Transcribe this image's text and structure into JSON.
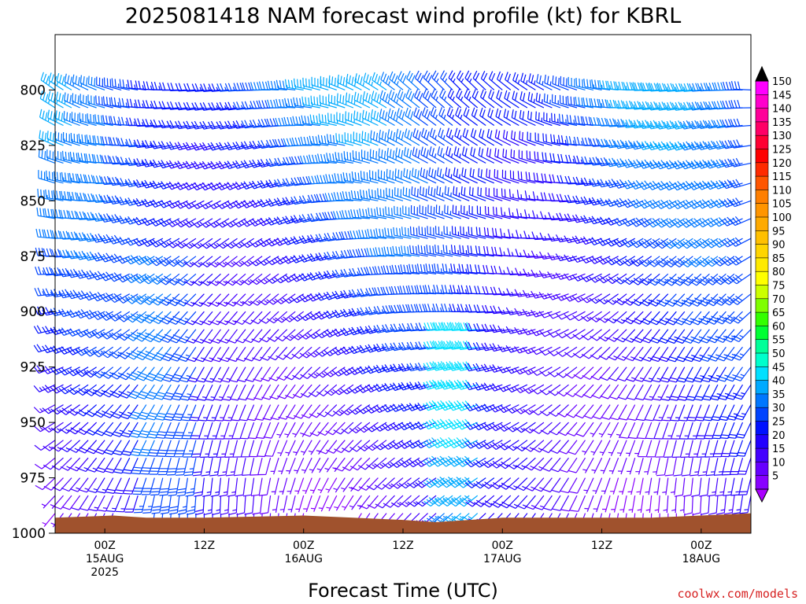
{
  "chart_data": {
    "type": "wind-barb time-height",
    "title": "2025081418 NAM forecast wind profile (kt) for KBRL",
    "xlabel": "Forecast Time (UTC)",
    "credit": "coolwx.com/models",
    "y_ticks": [
      "800",
      "825",
      "850",
      "875",
      "900",
      "925",
      "950",
      "975",
      "1000"
    ],
    "y_range_hPa": [
      775,
      1000
    ],
    "x_ticks": [
      {
        "hour": 0,
        "l1": "00Z",
        "l2": "15AUG",
        "l3": "2025"
      },
      {
        "hour": 12,
        "l1": "12Z",
        "l2": "",
        "l3": ""
      },
      {
        "hour": 24,
        "l1": "00Z",
        "l2": "16AUG",
        "l3": ""
      },
      {
        "hour": 36,
        "l1": "12Z",
        "l2": "",
        "l3": ""
      },
      {
        "hour": 48,
        "l1": "00Z",
        "l2": "17AUG",
        "l3": ""
      },
      {
        "hour": 60,
        "l1": "12Z",
        "l2": "",
        "l3": ""
      },
      {
        "hour": 72,
        "l1": "00Z",
        "l2": "18AUG",
        "l3": ""
      }
    ],
    "x_range_hours": [
      -6,
      78
    ],
    "colorbar": {
      "labels": [
        "150",
        "145",
        "140",
        "135",
        "130",
        "125",
        "120",
        "115",
        "110",
        "105",
        "100",
        "95",
        "90",
        "85",
        "80",
        "75",
        "70",
        "65",
        "60",
        "55",
        "50",
        "45",
        "40",
        "35",
        "30",
        "25",
        "20",
        "15",
        "10",
        "5"
      ],
      "colors": [
        "#ff00ff",
        "#ff00cc",
        "#ff0099",
        "#ff0066",
        "#ff0033",
        "#ff0000",
        "#ff2a00",
        "#ff5500",
        "#ff7f00",
        "#ff9500",
        "#ffaa00",
        "#ffc000",
        "#ffd500",
        "#ffea00",
        "#ffff00",
        "#ccff00",
        "#7fff00",
        "#33ff00",
        "#00ff33",
        "#00ff99",
        "#00ffcc",
        "#00e0ff",
        "#00aaff",
        "#0077ff",
        "#0044ff",
        "#0011ff",
        "#2200ff",
        "#4400ff",
        "#6600ff",
        "#8800ff"
      ]
    },
    "terrain_color": "#a0522d",
    "barb_levels_hPa": [
      800,
      808,
      816,
      825,
      833,
      842,
      850,
      858,
      867,
      875,
      883,
      892,
      900,
      908,
      916,
      925,
      933,
      942,
      950,
      958,
      966,
      975,
      983,
      991
    ],
    "barb_times_hours": [
      -6,
      -5,
      -4,
      -3,
      -2,
      -1,
      0,
      1,
      2,
      3,
      4,
      5,
      6,
      7,
      8,
      9,
      10,
      11,
      12,
      13,
      14,
      15,
      16,
      17,
      18,
      19,
      20,
      21,
      22,
      23,
      24,
      25,
      26,
      27,
      28,
      29,
      30,
      31,
      32,
      33,
      34,
      35,
      36,
      37,
      38,
      39,
      40,
      41,
      42,
      43,
      44,
      45,
      46,
      47,
      48,
      49,
      50,
      51,
      52,
      53,
      54,
      55,
      56,
      57,
      58,
      59,
      60,
      61,
      62,
      63,
      64,
      65,
      66,
      67,
      68,
      69,
      70,
      71,
      72,
      73,
      74,
      75,
      76,
      77,
      78
    ],
    "surface_pressure_hPa": [
      [
        -6,
        993
      ],
      [
        1,
        992
      ],
      [
        5,
        993
      ],
      [
        12,
        993
      ],
      [
        24,
        992
      ],
      [
        30,
        993
      ],
      [
        36,
        994
      ],
      [
        40,
        995
      ],
      [
        44,
        994
      ],
      [
        48,
        993
      ],
      [
        60,
        993
      ],
      [
        66,
        993
      ],
      [
        72,
        992
      ],
      [
        78,
        991
      ]
    ]
  }
}
